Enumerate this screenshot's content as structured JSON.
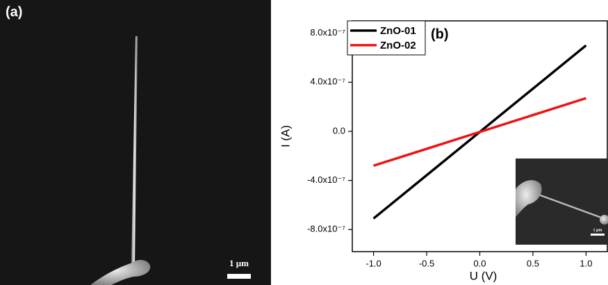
{
  "image_panel": {
    "label": "(a)",
    "scale_bar": "1 μm"
  },
  "chart_data": {
    "type": "line",
    "annotation": "(b)",
    "x_label": "U (V)",
    "y_label": "I (A)",
    "x": [
      -1.0,
      1.0
    ],
    "series": [
      {
        "name": "ZnO-01",
        "color": "#000000",
        "values": [
          -7.1e-07,
          7e-07
        ]
      },
      {
        "name": "ZnO-02",
        "color": "#ee1111",
        "values": [
          -2.8e-07,
          2.7e-07
        ]
      }
    ],
    "xlim": [
      -1.2,
      1.2
    ],
    "xticks": [
      {
        "value": -1.0,
        "label": "-1.0"
      },
      {
        "value": -0.5,
        "label": "-0.5"
      },
      {
        "value": 0,
        "label": "0.0"
      },
      {
        "value": 0.5,
        "label": "0.5"
      },
      {
        "value": 1.0,
        "label": "1.0"
      }
    ],
    "ylim": [
      -9.8e-07,
      9e-07
    ],
    "yticks": [
      {
        "value": -8e-07,
        "label": "-8.0x10⁻⁷"
      },
      {
        "value": -4e-07,
        "label": "-4.0x10⁻⁷"
      },
      {
        "value": 0,
        "label": "0.0"
      },
      {
        "value": 4e-07,
        "label": "4.0x10⁻⁷"
      },
      {
        "value": 8e-07,
        "label": "8.0x10⁻⁷"
      }
    ],
    "legend": "upper left",
    "inset_scale_bar": "1 μm"
  }
}
